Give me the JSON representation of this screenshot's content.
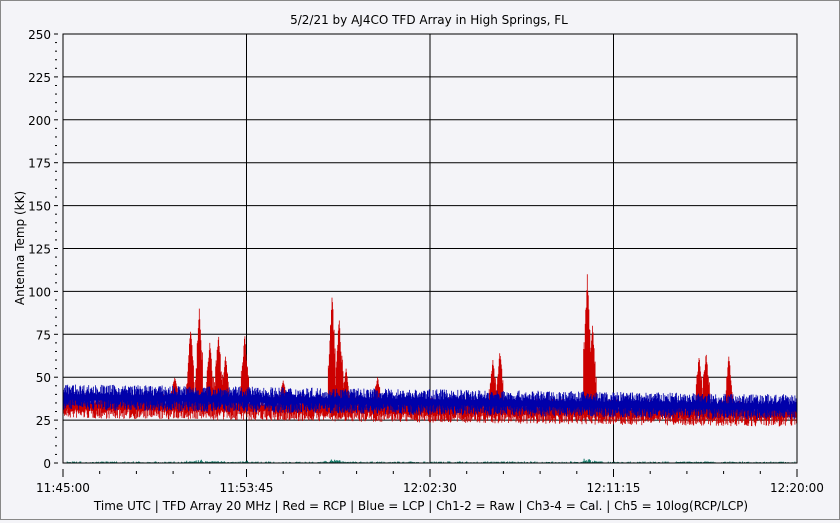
{
  "chart_data": {
    "type": "line",
    "title": "5/2/21  by  AJ4CO TFD Array  in  High Springs, FL",
    "ylabel": "Antenna Temp (kK)",
    "xlabel": "Time UTC | TFD Array 20 MHz | Red = RCP | Blue = LCP | Ch1-2 = Raw | Ch3-4 = Cal. | Ch5 = 10log(RCP/LCP)",
    "ylim": [
      0,
      250
    ],
    "yticks": [
      "0",
      "25",
      "50",
      "75",
      "100",
      "125",
      "150",
      "175",
      "200",
      "225",
      "250"
    ],
    "xlim": [
      "11:45:00",
      "12:20:00"
    ],
    "xticks": [
      "11:45:00",
      "11:53:45",
      "12:02:30",
      "12:11:15",
      "12:20:00"
    ],
    "grid": true,
    "series": [
      {
        "name": "RCP",
        "color": "#cc0000",
        "baseline": [
          35,
          30
        ],
        "spikes": [
          [
            "11:50:20",
            50
          ],
          [
            "11:51:05",
            78
          ],
          [
            "11:51:30",
            90
          ],
          [
            "11:52:00",
            70
          ],
          [
            "11:52:25",
            75
          ],
          [
            "11:52:45",
            62
          ],
          [
            "11:53:40",
            75
          ],
          [
            "11:55:30",
            48
          ],
          [
            "11:57:50",
            98
          ],
          [
            "11:58:10",
            85
          ],
          [
            "11:58:30",
            55
          ],
          [
            "12:00:00",
            50
          ],
          [
            "12:05:30",
            60
          ],
          [
            "12:05:50",
            65
          ],
          [
            "12:10:00",
            110
          ],
          [
            "12:10:15",
            80
          ],
          [
            "12:15:20",
            62
          ],
          [
            "12:15:40",
            64
          ],
          [
            "12:16:45",
            62
          ]
        ]
      },
      {
        "name": "LCP",
        "color": "#0000aa",
        "baseline": [
          40,
          34
        ],
        "spikes": []
      },
      {
        "name": "10log(RCP/LCP)",
        "color": "#117766",
        "baseline": [
          0,
          0
        ]
      }
    ]
  }
}
